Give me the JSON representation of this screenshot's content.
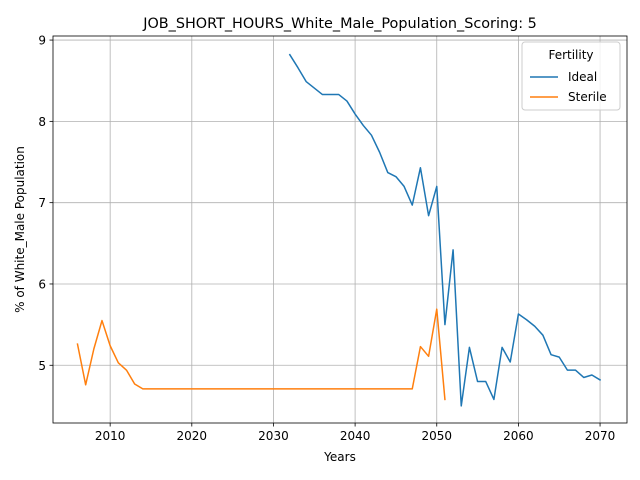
{
  "chart_data": {
    "type": "line",
    "title": "JOB_SHORT_HOURS_White_Male_Population_Scoring: 5",
    "xlabel": "Years",
    "ylabel": "% of White_Male Population",
    "xlim": [
      2003,
      2073.3
    ],
    "ylim": [
      4.29,
      9.05
    ],
    "xticks": [
      2010,
      2020,
      2030,
      2040,
      2050,
      2060,
      2070
    ],
    "yticks": [
      5,
      6,
      7,
      8,
      9
    ],
    "grid": true,
    "legend": {
      "title": "Fertility",
      "placement": "top-right",
      "entries": [
        "Ideal",
        "Sterile"
      ]
    },
    "series": [
      {
        "name": "Ideal",
        "color": "#1f77b4",
        "x": [
          2032,
          2033,
          2034,
          2035,
          2036,
          2037,
          2038,
          2039,
          2040,
          2041,
          2042,
          2043,
          2044,
          2045,
          2046,
          2047,
          2048,
          2049,
          2050,
          2051,
          2052,
          2053,
          2054,
          2055,
          2056,
          2057,
          2058,
          2059,
          2060,
          2061,
          2062,
          2063,
          2064,
          2065,
          2066,
          2067,
          2068,
          2069,
          2070
        ],
        "y": [
          8.82,
          8.66,
          8.49,
          8.41,
          8.33,
          8.33,
          8.33,
          8.25,
          8.09,
          7.95,
          7.83,
          7.62,
          7.37,
          7.32,
          7.2,
          6.97,
          7.43,
          6.84,
          7.2,
          5.5,
          6.42,
          4.5,
          5.22,
          4.8,
          4.8,
          4.58,
          5.22,
          5.04,
          5.63,
          5.56,
          5.48,
          5.37,
          5.13,
          5.1,
          4.94,
          4.94,
          4.85,
          4.88,
          4.82
        ]
      },
      {
        "name": "Sterile",
        "color": "#ff7f0e",
        "x": [
          2006,
          2007,
          2008,
          2009,
          2010,
          2011,
          2012,
          2013,
          2014,
          2015,
          2016,
          2017,
          2018,
          2019,
          2020,
          2021,
          2022,
          2023,
          2024,
          2025,
          2026,
          2027,
          2028,
          2029,
          2030,
          2031,
          2032,
          2033,
          2034,
          2035,
          2036,
          2037,
          2038,
          2039,
          2040,
          2041,
          2042,
          2043,
          2044,
          2045,
          2046,
          2047,
          2048,
          2049,
          2050,
          2051
        ],
        "y": [
          5.26,
          4.76,
          5.2,
          5.55,
          5.24,
          5.03,
          4.94,
          4.77,
          4.71,
          4.71,
          4.71,
          4.71,
          4.71,
          4.71,
          4.71,
          4.71,
          4.71,
          4.71,
          4.71,
          4.71,
          4.71,
          4.71,
          4.71,
          4.71,
          4.71,
          4.71,
          4.71,
          4.71,
          4.71,
          4.71,
          4.71,
          4.71,
          4.71,
          4.71,
          4.71,
          4.71,
          4.71,
          4.71,
          4.71,
          4.71,
          4.71,
          4.71,
          5.23,
          5.11,
          5.69,
          4.58
        ]
      }
    ]
  }
}
